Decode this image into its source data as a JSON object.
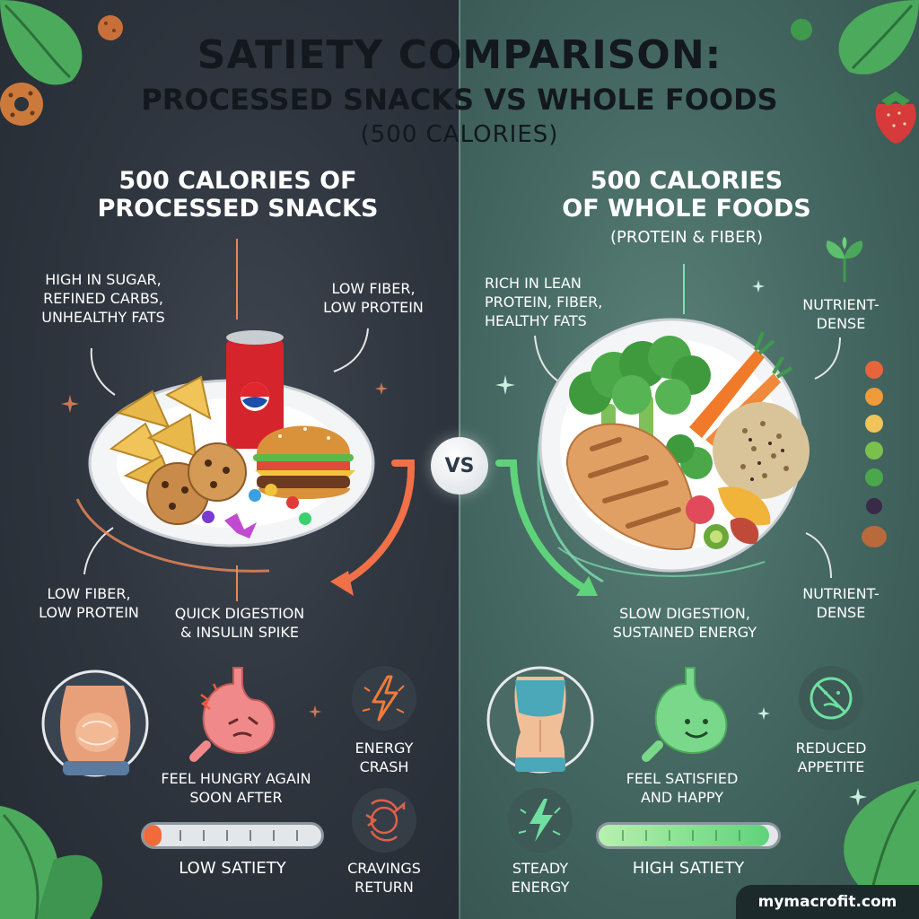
{
  "title": {
    "line1": "SATIETY COMPARISON:",
    "line2": "PROCESSED SNACKS VS WHOLE FOODS",
    "line3": "(500 CALORIES)"
  },
  "vs_label": "VS",
  "left": {
    "heading_line1": "500 CALORIES OF",
    "heading_line2": "PROCESSED SNACKS",
    "labels": {
      "high_sugar": [
        "HIGH IN SUGAR,",
        "REFINED CARBS,",
        "UNHEALTHY FATS"
      ],
      "low_fiber_top": [
        "LOW FIBER,",
        "LOW PROTEIN"
      ],
      "low_fiber_bottom": [
        "LOW FIBER,",
        "LOW PROTEIN"
      ],
      "quick_digestion": [
        "QUICK DIGESTION",
        "& INSULIN SPIKE"
      ],
      "feel_hungry": [
        "FEEL HUNGRY AGAIN",
        "SOON AFTER"
      ],
      "energy_crash": [
        "ENERGY",
        "CRASH"
      ],
      "cravings": [
        "CRAVINGS",
        "RETURN"
      ]
    },
    "satiety_label": "LOW SATIETY",
    "satiety_level": 0.1,
    "accent": "#f06a3a"
  },
  "right": {
    "heading_line1": "500 CALORIES",
    "heading_line2": "OF WHOLE FOODS",
    "heading_line3": "(PROTEIN & FIBER)",
    "labels": {
      "rich_in": [
        "RICH IN LEAN",
        "PROTEIN, FIBER,",
        "HEALTHY FATS"
      ],
      "nutrient_top": [
        "NUTRIENT-",
        "DENSE"
      ],
      "nutrient_bottom": [
        "NUTRIENT-",
        "DENSE"
      ],
      "slow_digestion": [
        "SLOW DIGESTION,",
        "SUSTAINED ENERGY"
      ],
      "feel_satisfied": [
        "FEEL SATISFIED",
        "AND HAPPY"
      ],
      "reduced_appetite": [
        "REDUCED",
        "APPETITE"
      ],
      "steady_energy": [
        "STEADY",
        "ENERGY"
      ]
    },
    "satiety_label": "HIGH SATIETY",
    "satiety_level": 0.95,
    "accent": "#5fd37a"
  },
  "icons": {
    "left_plate": "processed-snacks-plate-icon",
    "right_plate": "whole-foods-plate-icon",
    "bloated_belly": "bloated-belly-icon",
    "upset_stomach": "upset-stomach-icon",
    "lightning": "lightning-bolt-icon",
    "cravings": "cravings-icon",
    "fit_torso": "fit-torso-icon",
    "happy_stomach": "happy-stomach-icon",
    "no_appetite": "reduced-appetite-icon",
    "steady_bolt": "steady-energy-bolt-icon"
  },
  "brand": "mymacrofit.com"
}
